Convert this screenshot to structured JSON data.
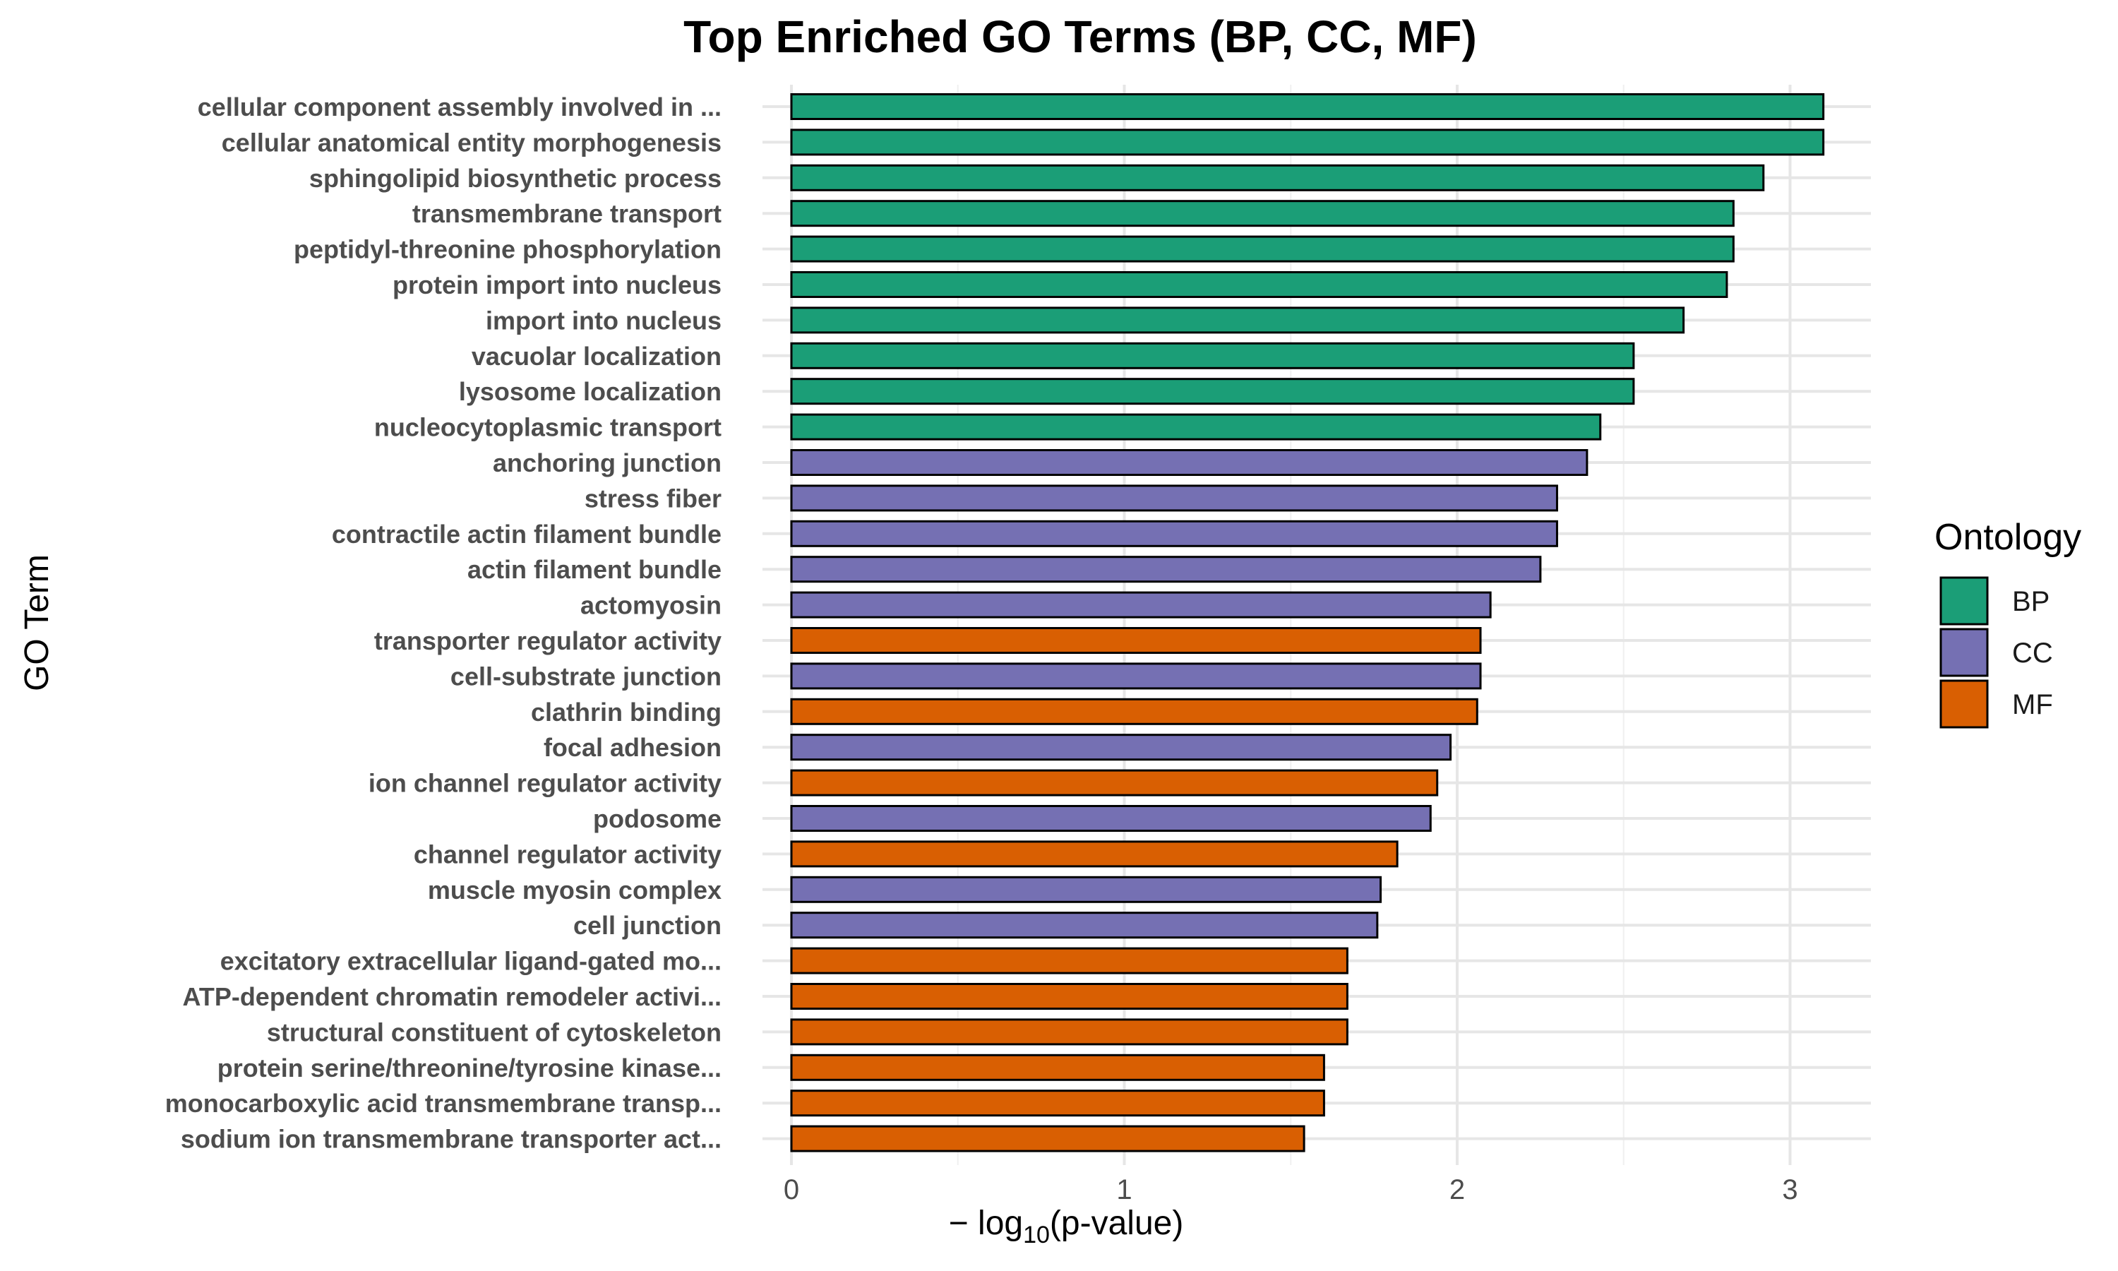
{
  "chart_data": {
    "type": "bar",
    "orientation": "horizontal",
    "title": "Top Enriched GO Terms (BP, CC, MF)",
    "xlabel_prefix": "− log",
    "xlabel_sub": "10",
    "xlabel_suffix": "(p-value)",
    "ylabel": "GO Term",
    "xlim": [
      0,
      3.25
    ],
    "x_ticks": [
      "0",
      "1",
      "2",
      "3"
    ],
    "grid": true,
    "legend": {
      "title": "Ontology",
      "position": "right",
      "entries": [
        {
          "name": "BP",
          "color": "#1B9E77"
        },
        {
          "name": "CC",
          "color": "#7570B3"
        },
        {
          "name": "MF",
          "color": "#D95F02"
        }
      ]
    },
    "bars": [
      {
        "term": "cellular component assembly involved in ...",
        "ontology": "BP",
        "value": 3.1
      },
      {
        "term": "cellular anatomical entity morphogenesis",
        "ontology": "BP",
        "value": 3.1
      },
      {
        "term": "sphingolipid biosynthetic process",
        "ontology": "BP",
        "value": 2.92
      },
      {
        "term": "transmembrane transport",
        "ontology": "BP",
        "value": 2.83
      },
      {
        "term": "peptidyl-threonine phosphorylation",
        "ontology": "BP",
        "value": 2.83
      },
      {
        "term": "protein import into nucleus",
        "ontology": "BP",
        "value": 2.81
      },
      {
        "term": "import into nucleus",
        "ontology": "BP",
        "value": 2.68
      },
      {
        "term": "vacuolar localization",
        "ontology": "BP",
        "value": 2.53
      },
      {
        "term": "lysosome localization",
        "ontology": "BP",
        "value": 2.53
      },
      {
        "term": "nucleocytoplasmic transport",
        "ontology": "BP",
        "value": 2.43
      },
      {
        "term": "anchoring junction",
        "ontology": "CC",
        "value": 2.39
      },
      {
        "term": "stress fiber",
        "ontology": "CC",
        "value": 2.3
      },
      {
        "term": "contractile actin filament bundle",
        "ontology": "CC",
        "value": 2.3
      },
      {
        "term": "actin filament bundle",
        "ontology": "CC",
        "value": 2.25
      },
      {
        "term": "actomyosin",
        "ontology": "CC",
        "value": 2.1
      },
      {
        "term": "transporter regulator activity",
        "ontology": "MF",
        "value": 2.07
      },
      {
        "term": "cell-substrate junction",
        "ontology": "CC",
        "value": 2.07
      },
      {
        "term": "clathrin binding",
        "ontology": "MF",
        "value": 2.06
      },
      {
        "term": "focal adhesion",
        "ontology": "CC",
        "value": 1.98
      },
      {
        "term": "ion channel regulator activity",
        "ontology": "MF",
        "value": 1.94
      },
      {
        "term": "podosome",
        "ontology": "CC",
        "value": 1.92
      },
      {
        "term": "channel regulator activity",
        "ontology": "MF",
        "value": 1.82
      },
      {
        "term": "muscle myosin complex",
        "ontology": "CC",
        "value": 1.77
      },
      {
        "term": "cell junction",
        "ontology": "CC",
        "value": 1.76
      },
      {
        "term": "excitatory extracellular ligand-gated mo...",
        "ontology": "MF",
        "value": 1.67
      },
      {
        "term": "ATP-dependent chromatin remodeler activi...",
        "ontology": "MF",
        "value": 1.67
      },
      {
        "term": "structural constituent of cytoskeleton",
        "ontology": "MF",
        "value": 1.67
      },
      {
        "term": "protein serine/threonine/tyrosine kinase...",
        "ontology": "MF",
        "value": 1.6
      },
      {
        "term": "monocarboxylic acid transmembrane transp...",
        "ontology": "MF",
        "value": 1.6
      },
      {
        "term": "sodium ion transmembrane transporter act...",
        "ontology": "MF",
        "value": 1.54
      }
    ]
  }
}
